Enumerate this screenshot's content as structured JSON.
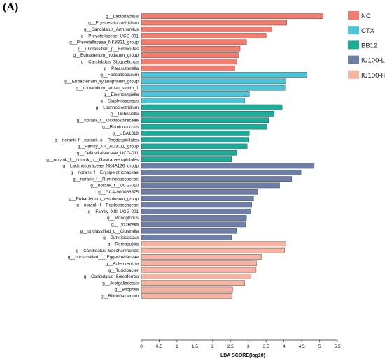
{
  "panel_label": "(A)",
  "chart_data": {
    "type": "bar",
    "orientation": "horizontal",
    "title": "",
    "xlabel": "LDA SCORE(log10)",
    "ylabel": "",
    "xlim": [
      0,
      5.5
    ],
    "xticks": [
      "0",
      "0.5",
      "1",
      "1.5",
      "2",
      "2.5",
      "3",
      "3.5",
      "4",
      "4.5",
      "5",
      "5.5"
    ],
    "grid": false,
    "legend_position": "top-right",
    "groups": [
      {
        "name": "NC",
        "color": "#F47C6E"
      },
      {
        "name": "CTX",
        "color": "#4BC5D9"
      },
      {
        "name": "BB12",
        "color": "#1AAE9A"
      },
      {
        "name": "IU100-L",
        "color": "#6D7FA6"
      },
      {
        "name": "IU100-H",
        "color": "#F9B3A2"
      }
    ],
    "bars": [
      {
        "label": "g__Lactobacillus",
        "value": 5.1,
        "group": "NC"
      },
      {
        "label": "g__Erysipelatoclostridium",
        "value": 4.08,
        "group": "NC"
      },
      {
        "label": "g__Candidatus_Arthromitus",
        "value": 3.67,
        "group": "NC"
      },
      {
        "label": "g__Prevotellaceae_UCG-001",
        "value": 3.5,
        "group": "NC"
      },
      {
        "label": "g__Prevotellaceae_NK3B31_group",
        "value": 2.95,
        "group": "NC"
      },
      {
        "label": "g__unclassified_p__Firmicutes",
        "value": 2.77,
        "group": "NC"
      },
      {
        "label": "g__Eubacterium_nodatum_group",
        "value": 2.72,
        "group": "NC"
      },
      {
        "label": "g__Candidatus_Stoquefichus",
        "value": 2.68,
        "group": "NC"
      },
      {
        "label": "g__Parasutterella",
        "value": 2.62,
        "group": "NC"
      },
      {
        "label": "g__Faecalibaculum",
        "value": 4.65,
        "group": "CTX"
      },
      {
        "label": "g__Eubacterium_xylanophilum_group",
        "value": 4.05,
        "group": "CTX"
      },
      {
        "label": "g__Clostridium_sensu_stricto_1",
        "value": 4.03,
        "group": "CTX"
      },
      {
        "label": "g__Eisenbergiella",
        "value": 3.03,
        "group": "CTX"
      },
      {
        "label": "g__Staphylococcus",
        "value": 2.9,
        "group": "CTX"
      },
      {
        "label": "g__Lachnoclostridium",
        "value": 3.95,
        "group": "BB12"
      },
      {
        "label": "g__Dubosiella",
        "value": 3.73,
        "group": "BB12"
      },
      {
        "label": "g__norank_f__Oscillospiraceae",
        "value": 3.57,
        "group": "BB12"
      },
      {
        "label": "g__Ruminococcus",
        "value": 3.52,
        "group": "BB12"
      },
      {
        "label": "g__UBA1819",
        "value": 3.03,
        "group": "BB12"
      },
      {
        "label": "g__norank_f__norank_o__Rhodospirillales",
        "value": 3.02,
        "group": "BB12"
      },
      {
        "label": "g__Family_XIII_AD3011_group",
        "value": 2.97,
        "group": "BB12"
      },
      {
        "label": "g__Defluviitaleaceae_UCG-011",
        "value": 2.68,
        "group": "BB12"
      },
      {
        "label": "g__norank_f__norank_o__Gastranaerophilales",
        "value": 2.53,
        "group": "BB12"
      },
      {
        "label": "g__Lachnospiraceae_NK4A136_group",
        "value": 4.85,
        "group": "IU100-L"
      },
      {
        "label": "g__norank_f__Erysipelotrichaceae",
        "value": 4.48,
        "group": "IU100-L"
      },
      {
        "label": "g__norank_f__Ruminococcaceae",
        "value": 4.22,
        "group": "IU100-L"
      },
      {
        "label": "g__norank_f__UCG-010",
        "value": 3.88,
        "group": "IU100-L"
      },
      {
        "label": "g__GCA-900066575",
        "value": 3.27,
        "group": "IU100-L"
      },
      {
        "label": "g__Eubacterium_ventriosum_group",
        "value": 3.15,
        "group": "IU100-L"
      },
      {
        "label": "g__norank_f__Peptococcaceae",
        "value": 3.1,
        "group": "IU100-L"
      },
      {
        "label": "g__Family_XIII_UCG-001",
        "value": 3.08,
        "group": "IU100-L"
      },
      {
        "label": "g__Monoglobus",
        "value": 2.95,
        "group": "IU100-L"
      },
      {
        "label": "g__Tyzzerella",
        "value": 2.92,
        "group": "IU100-L"
      },
      {
        "label": "g__unclassified_c__Clostridia",
        "value": 2.67,
        "group": "IU100-L"
      },
      {
        "label": "g__Butyricicoccus",
        "value": 2.53,
        "group": "IU100-L"
      },
      {
        "label": "g__Romboutsia",
        "value": 4.05,
        "group": "IU100-H"
      },
      {
        "label": "g__Candidatus_Saccharimonas",
        "value": 4.02,
        "group": "IU100-H"
      },
      {
        "label": "g__unclassified_f__Eggerthellaceae",
        "value": 3.37,
        "group": "IU100-H"
      },
      {
        "label": "g__Adlercreutzia",
        "value": 3.23,
        "group": "IU100-H"
      },
      {
        "label": "g__Turicibacter",
        "value": 3.22,
        "group": "IU100-H"
      },
      {
        "label": "g__Candidatus_Soleaferrea",
        "value": 3.07,
        "group": "IU100-H"
      },
      {
        "label": "g__Jeotgalicoccus",
        "value": 2.9,
        "group": "IU100-H"
      },
      {
        "label": "g__Bilophila",
        "value": 2.56,
        "group": "IU100-H"
      },
      {
        "label": "g__Bifidobacterium",
        "value": 2.55,
        "group": "IU100-H"
      }
    ]
  }
}
